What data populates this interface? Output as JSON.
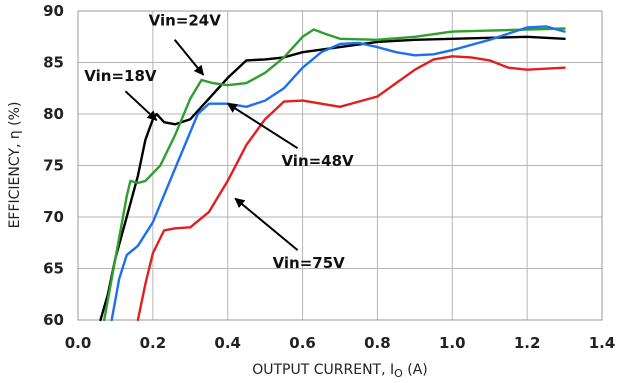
{
  "chart_data": {
    "type": "line",
    "title": "",
    "xlabel": "OUTPUT CURRENT, I",
    "xlabel_sub": "O",
    "xlabel_unit": " (A)",
    "ylabel": "EFFICIENCY, η  (%)",
    "xlim": [
      0,
      1.4
    ],
    "ylim": [
      60,
      90
    ],
    "x_ticks": [
      "0.0",
      "0.2",
      "0.4",
      "0.6",
      "0.8",
      "1.0",
      "1.2",
      "1.4"
    ],
    "y_ticks": [
      "60",
      "65",
      "70",
      "75",
      "80",
      "85",
      "90"
    ],
    "grid": true,
    "series": [
      {
        "name": "Vin=18V",
        "color": "#000000",
        "points": [
          [
            0.06,
            60
          ],
          [
            0.08,
            62.5
          ],
          [
            0.1,
            66
          ],
          [
            0.13,
            70
          ],
          [
            0.16,
            74
          ],
          [
            0.18,
            77.5
          ],
          [
            0.2,
            79.5
          ],
          [
            0.21,
            80
          ],
          [
            0.23,
            79.2
          ],
          [
            0.26,
            79
          ],
          [
            0.3,
            79.5
          ],
          [
            0.35,
            81.5
          ],
          [
            0.4,
            83.5
          ],
          [
            0.45,
            85.2
          ],
          [
            0.5,
            85.3
          ],
          [
            0.55,
            85.5
          ],
          [
            0.6,
            86
          ],
          [
            0.7,
            86.5
          ],
          [
            0.8,
            87
          ],
          [
            0.9,
            87.2
          ],
          [
            1.0,
            87.3
          ],
          [
            1.1,
            87.4
          ],
          [
            1.2,
            87.5
          ],
          [
            1.3,
            87.3
          ]
        ]
      },
      {
        "name": "Vin=24V",
        "color": "#2e9e2e",
        "points": [
          [
            0.07,
            60
          ],
          [
            0.09,
            64
          ],
          [
            0.11,
            68
          ],
          [
            0.13,
            72
          ],
          [
            0.14,
            73.5
          ],
          [
            0.16,
            73.3
          ],
          [
            0.18,
            73.5
          ],
          [
            0.22,
            75
          ],
          [
            0.26,
            78
          ],
          [
            0.3,
            81.5
          ],
          [
            0.33,
            83.3
          ],
          [
            0.36,
            83
          ],
          [
            0.4,
            82.8
          ],
          [
            0.45,
            83
          ],
          [
            0.5,
            84
          ],
          [
            0.55,
            85.5
          ],
          [
            0.6,
            87.5
          ],
          [
            0.63,
            88.2
          ],
          [
            0.66,
            87.8
          ],
          [
            0.7,
            87.3
          ],
          [
            0.8,
            87.2
          ],
          [
            0.9,
            87.5
          ],
          [
            1.0,
            88
          ],
          [
            1.1,
            88.1
          ],
          [
            1.2,
            88.2
          ],
          [
            1.3,
            88.3
          ]
        ]
      },
      {
        "name": "Vin=48V",
        "color": "#1e6ff0",
        "points": [
          [
            0.09,
            60
          ],
          [
            0.11,
            64
          ],
          [
            0.13,
            66.3
          ],
          [
            0.16,
            67.2
          ],
          [
            0.2,
            69.5
          ],
          [
            0.24,
            73
          ],
          [
            0.28,
            76.5
          ],
          [
            0.32,
            80
          ],
          [
            0.35,
            81
          ],
          [
            0.4,
            81
          ],
          [
            0.45,
            80.7
          ],
          [
            0.5,
            81.3
          ],
          [
            0.55,
            82.5
          ],
          [
            0.6,
            84.5
          ],
          [
            0.65,
            86
          ],
          [
            0.7,
            86.8
          ],
          [
            0.75,
            86.9
          ],
          [
            0.8,
            86.5
          ],
          [
            0.85,
            86
          ],
          [
            0.9,
            85.7
          ],
          [
            0.95,
            85.8
          ],
          [
            1.0,
            86.2
          ],
          [
            1.1,
            87.2
          ],
          [
            1.2,
            88.4
          ],
          [
            1.25,
            88.5
          ],
          [
            1.3,
            88
          ]
        ]
      },
      {
        "name": "Vin=75V",
        "color": "#e02020",
        "points": [
          [
            0.16,
            60
          ],
          [
            0.18,
            63.5
          ],
          [
            0.2,
            66.5
          ],
          [
            0.23,
            68.7
          ],
          [
            0.26,
            68.9
          ],
          [
            0.3,
            69
          ],
          [
            0.35,
            70.5
          ],
          [
            0.4,
            73.5
          ],
          [
            0.45,
            77
          ],
          [
            0.5,
            79.5
          ],
          [
            0.55,
            81.2
          ],
          [
            0.6,
            81.3
          ],
          [
            0.65,
            81
          ],
          [
            0.7,
            80.7
          ],
          [
            0.75,
            81.2
          ],
          [
            0.8,
            81.7
          ],
          [
            0.85,
            83
          ],
          [
            0.9,
            84.3
          ],
          [
            0.95,
            85.3
          ],
          [
            1.0,
            85.6
          ],
          [
            1.05,
            85.5
          ],
          [
            1.1,
            85.2
          ],
          [
            1.15,
            84.5
          ],
          [
            1.2,
            84.3
          ],
          [
            1.3,
            84.5
          ]
        ]
      }
    ],
    "annotations": [
      {
        "text": "Vin=24V",
        "from": [
          0.205,
          87.6
        ],
        "to": [
          0.335,
          83.8
        ]
      },
      {
        "text": "Vin=18V",
        "from": [
          0.14,
          79.3
        ],
        "to": [
          0.21,
          79.4
        ]
      },
      {
        "text": "Vin=48V",
        "from": [
          0.6,
          76.1
        ],
        "to": [
          0.4,
          81
        ]
      },
      {
        "text": "Vin=75V",
        "from": [
          0.6,
          66.2
        ],
        "to": [
          0.42,
          71.8
        ]
      }
    ]
  }
}
